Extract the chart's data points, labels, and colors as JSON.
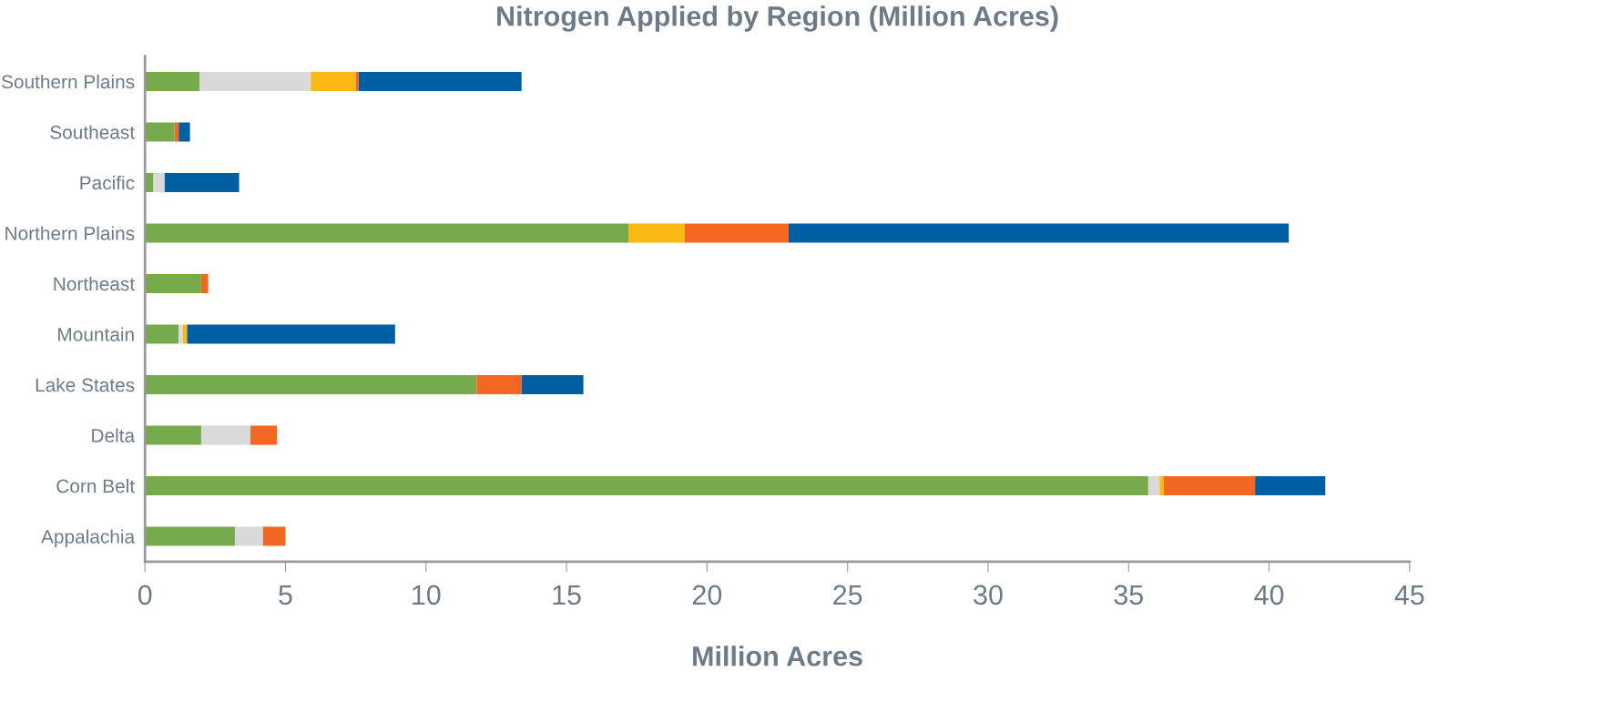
{
  "chart_data": {
    "type": "bar",
    "orientation": "horizontal",
    "stacked": true,
    "title": "Nitrogen Applied by Region (Million Acres)",
    "xlabel": "Million Acres",
    "categories": [
      "Southern Plains",
      "Southeast",
      "Pacific",
      "Northern Plains",
      "Northeast",
      "Mountain",
      "Lake States",
      "Delta",
      "Corn Belt",
      "Appalachia"
    ],
    "series": [
      {
        "color": "#77a94d",
        "values": [
          1.95,
          1.05,
          0.3,
          17.2,
          2.0,
          1.2,
          11.8,
          2.0,
          35.7,
          3.2
        ]
      },
      {
        "color": "#d9d9d9",
        "values": [
          3.95,
          0,
          0.4,
          0,
          0,
          0.15,
          0,
          1.75,
          0.4,
          1.0
        ]
      },
      {
        "color": "#fdb913",
        "values": [
          1.6,
          0,
          0,
          2.0,
          0,
          0.15,
          0,
          0,
          0.15,
          0
        ]
      },
      {
        "color": "#f26722",
        "values": [
          0.1,
          0.15,
          0,
          3.7,
          0.25,
          0,
          1.6,
          0.95,
          3.25,
          0.8
        ]
      },
      {
        "color": "#005ea2",
        "values": [
          5.8,
          0.4,
          2.65,
          17.8,
          0,
          7.4,
          2.2,
          0,
          2.5,
          0
        ]
      }
    ],
    "xlim": [
      0,
      45
    ],
    "xticks": [
      0,
      5,
      10,
      15,
      20,
      25,
      30,
      35,
      40,
      45
    ],
    "grid": false,
    "legend": false
  }
}
